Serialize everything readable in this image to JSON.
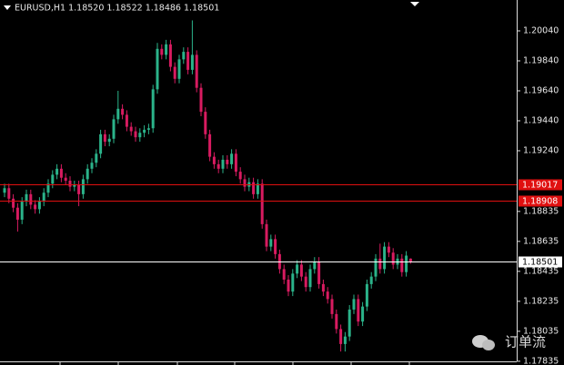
{
  "chart_data": {
    "type": "candlestick",
    "title": "EURUSD,H1  1.18520 1.18522 1.18486 1.18501",
    "up_color": "#2bb38a",
    "down_color": "#d81b60",
    "open": [
      1.1896,
      1.1899,
      1.1892,
      1.1886,
      1.1878,
      1.189,
      1.1895,
      1.1888,
      1.1885,
      1.189,
      1.1896,
      1.1902,
      1.1908,
      1.1912,
      1.1906,
      1.1904,
      1.19,
      1.1901,
      1.1895,
      1.1905,
      1.1912,
      1.1916,
      1.1922,
      1.1935,
      1.193,
      1.1932,
      1.1945,
      1.1952,
      1.1948,
      1.194,
      1.1937,
      1.1933,
      1.1936,
      1.1938,
      1.1939,
      1.1965,
      1.1992,
      1.1988,
      1.1995,
      1.198,
      1.1972,
      1.1985,
      1.199,
      1.1978,
      1.1988,
      1.1966,
      1.195,
      1.1935,
      1.192,
      1.1915,
      1.1912,
      1.1918,
      1.1915,
      1.1922,
      1.191,
      1.1905,
      1.19,
      1.1903,
      1.1895,
      1.1902,
      1.1875,
      1.186,
      1.1865,
      1.1855,
      1.1845,
      1.1838,
      1.183,
      1.1842,
      1.1848,
      1.184,
      1.1833,
      1.1845,
      1.185,
      1.1835,
      1.183,
      1.1825,
      1.1815,
      1.1805,
      1.1795,
      1.18,
      1.1818,
      1.1825,
      1.181,
      1.182,
      1.1835,
      1.184,
      1.1852,
      1.1845,
      1.186,
      1.1856,
      1.1848,
      1.1852,
      1.1843,
      1.1852
    ],
    "high": [
      1.1902,
      1.1902,
      1.1895,
      1.1889,
      1.1893,
      1.1898,
      1.1898,
      1.1891,
      1.1893,
      1.1899,
      1.1905,
      1.1911,
      1.1915,
      1.1915,
      1.1909,
      1.1907,
      1.1904,
      1.1904,
      1.1908,
      1.1915,
      1.1919,
      1.1925,
      1.1938,
      1.1938,
      1.1935,
      1.1948,
      1.1964,
      1.1955,
      1.1951,
      1.1943,
      1.194,
      1.1939,
      1.1941,
      1.1942,
      1.1968,
      1.1996,
      1.1995,
      1.1998,
      1.1998,
      1.1983,
      1.1988,
      1.1993,
      1.1993,
      1.2011,
      1.1991,
      1.1969,
      1.1953,
      1.1938,
      1.1923,
      1.1918,
      1.1921,
      1.1921,
      1.1925,
      1.1925,
      1.1913,
      1.1908,
      1.1906,
      1.1906,
      1.1905,
      1.1905,
      1.1878,
      1.1868,
      1.1868,
      1.1858,
      1.1848,
      1.1841,
      1.1845,
      1.1851,
      1.1851,
      1.1843,
      1.1848,
      1.1853,
      1.1853,
      1.1838,
      1.1833,
      1.1828,
      1.1818,
      1.1808,
      1.1803,
      1.1821,
      1.1828,
      1.1828,
      1.1823,
      1.1838,
      1.1843,
      1.1855,
      1.1862,
      1.1863,
      1.1863,
      1.1859,
      1.1855,
      1.1855,
      1.1857,
      1.18522
    ],
    "low": [
      1.1893,
      1.1889,
      1.1883,
      1.187,
      1.1875,
      1.1887,
      1.1885,
      1.1882,
      1.1882,
      1.1887,
      1.1893,
      1.1899,
      1.1905,
      1.1903,
      1.1901,
      1.1897,
      1.1897,
      1.1887,
      1.1892,
      1.1902,
      1.1909,
      1.1913,
      1.1919,
      1.1927,
      1.1927,
      1.1929,
      1.1942,
      1.1945,
      1.1937,
      1.1934,
      1.193,
      1.193,
      1.1933,
      1.1935,
      1.1936,
      1.1962,
      1.1985,
      1.1985,
      1.1977,
      1.1969,
      1.1969,
      1.1982,
      1.1975,
      1.1975,
      1.1963,
      1.1947,
      1.1932,
      1.1917,
      1.1912,
      1.1909,
      1.1909,
      1.1912,
      1.1912,
      1.1907,
      1.1902,
      1.1897,
      1.1897,
      1.1892,
      1.1892,
      1.1872,
      1.1857,
      1.1857,
      1.1852,
      1.1842,
      1.1835,
      1.1827,
      1.1827,
      1.1839,
      1.1837,
      1.183,
      1.183,
      1.1842,
      1.1832,
      1.1827,
      1.1822,
      1.1812,
      1.1802,
      1.179,
      1.179,
      1.1797,
      1.1815,
      1.1807,
      1.1807,
      1.1817,
      1.1832,
      1.1837,
      1.1842,
      1.1842,
      1.1853,
      1.1845,
      1.1845,
      1.184,
      1.184,
      1.18486
    ],
    "close": [
      1.1899,
      1.1892,
      1.1886,
      1.1878,
      1.189,
      1.1895,
      1.1888,
      1.1885,
      1.189,
      1.1896,
      1.1902,
      1.1908,
      1.1912,
      1.1906,
      1.1904,
      1.19,
      1.1901,
      1.1895,
      1.1905,
      1.1912,
      1.1916,
      1.1922,
      1.1935,
      1.193,
      1.1932,
      1.1945,
      1.1952,
      1.1948,
      1.194,
      1.1937,
      1.1933,
      1.1936,
      1.1938,
      1.1939,
      1.1965,
      1.1992,
      1.1988,
      1.1995,
      1.198,
      1.1972,
      1.1985,
      1.199,
      1.1978,
      1.1988,
      1.1966,
      1.195,
      1.1935,
      1.192,
      1.1915,
      1.1912,
      1.1918,
      1.1915,
      1.1922,
      1.191,
      1.1905,
      1.19,
      1.1903,
      1.1895,
      1.1902,
      1.1875,
      1.186,
      1.1865,
      1.1855,
      1.1845,
      1.1838,
      1.183,
      1.1842,
      1.1848,
      1.184,
      1.1833,
      1.1845,
      1.185,
      1.1835,
      1.183,
      1.1825,
      1.1815,
      1.1805,
      1.1795,
      1.18,
      1.1818,
      1.1825,
      1.181,
      1.182,
      1.1835,
      1.184,
      1.1852,
      1.1845,
      1.186,
      1.1856,
      1.1848,
      1.1852,
      1.1843,
      1.1854,
      1.18501
    ],
    "ylim": [
      1.1781,
      1.20246
    ],
    "yticks": [
      {
        "value": 1.2004,
        "label": "1.20040"
      },
      {
        "value": 1.1984,
        "label": "1.19840"
      },
      {
        "value": 1.1964,
        "label": "1.19640"
      },
      {
        "value": 1.1944,
        "label": "1.19440"
      },
      {
        "value": 1.1924,
        "label": "1.19240"
      },
      1.18835,
      1.18635,
      1.18435,
      1.18235,
      1.18035,
      1.17835
    ],
    "levels": [
      {
        "value": 1.19017,
        "color": "#e01010"
      },
      {
        "value": 1.18908,
        "color": "#e01010"
      },
      {
        "value": 1.18501,
        "color": "#ffffff"
      }
    ],
    "watermark": "订单流"
  }
}
